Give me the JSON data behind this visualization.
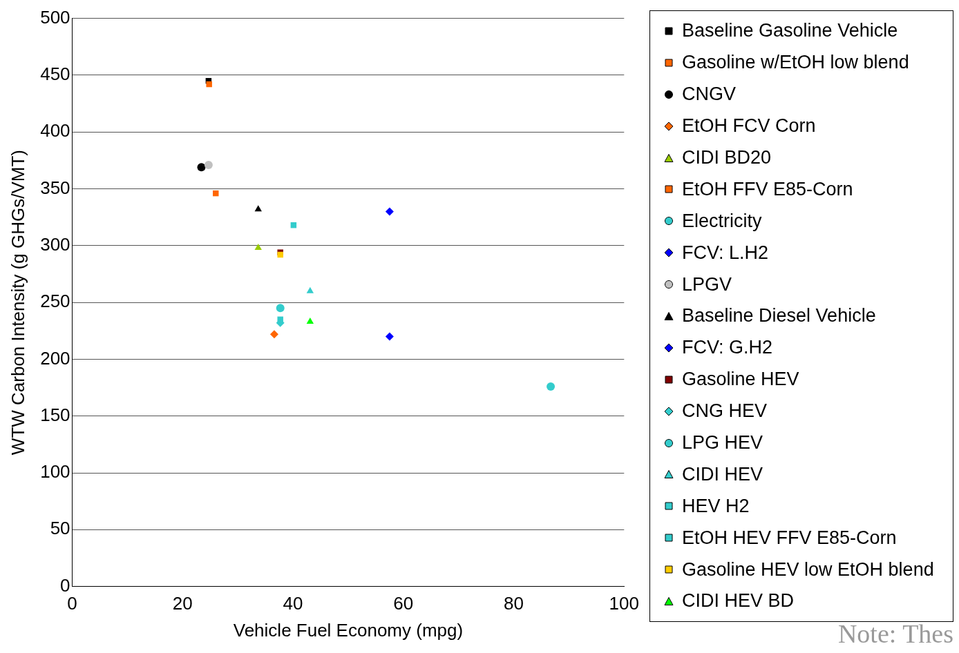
{
  "chart_data": {
    "type": "scatter",
    "xlabel": "Vehicle Fuel Economy (mpg)",
    "ylabel": "WTW Carbon Intensity (g GHGs/VMT)",
    "xlim": [
      0,
      100
    ],
    "xticks": [
      0,
      20,
      40,
      60,
      80,
      100
    ],
    "ylim": [
      0,
      500
    ],
    "yticks": [
      0,
      50,
      100,
      150,
      200,
      250,
      300,
      350,
      400,
      450,
      500
    ],
    "grid": "y",
    "legend": "right",
    "annotations": [
      "Note: Thes"
    ],
    "series": [
      {
        "name": "Baseline Gasoline Vehicle",
        "color": "#000000",
        "marker": "square",
        "x": [
          24.7
        ],
        "values": [
          445
        ]
      },
      {
        "name": "Gasoline w/EtOH low blend",
        "color": "#ff6600",
        "marker": "square",
        "x": [
          24.8
        ],
        "values": [
          442
        ]
      },
      {
        "name": "CNGV",
        "color": "#000000",
        "marker": "circle",
        "x": [
          23.4
        ],
        "values": [
          369
        ]
      },
      {
        "name": "EtOH FCV Corn",
        "color": "#ff6600",
        "marker": "diamond",
        "x": [
          36.6
        ],
        "values": [
          222
        ]
      },
      {
        "name": "CIDI BD20",
        "color": "#99cc00",
        "marker": "triangle",
        "x": [
          33.7
        ],
        "values": [
          298
        ]
      },
      {
        "name": "EtOH FFV E85-Corn",
        "color": "#ff6600",
        "marker": "square",
        "x": [
          26.0
        ],
        "values": [
          346
        ]
      },
      {
        "name": "Electricity",
        "color": "#33cccc",
        "marker": "circle",
        "x": [
          86.7
        ],
        "values": [
          176
        ]
      },
      {
        "name": "FCV: L.H2",
        "color": "#0000ff",
        "marker": "diamond",
        "x": [
          57.5
        ],
        "values": [
          330
        ]
      },
      {
        "name": "LPGV",
        "color": "#c0c0c0",
        "marker": "circle",
        "x": [
          24.7
        ],
        "values": [
          371
        ]
      },
      {
        "name": "Baseline Diesel Vehicle",
        "color": "#000000",
        "marker": "triangle",
        "x": [
          33.7
        ],
        "values": [
          332
        ]
      },
      {
        "name": "FCV: G.H2",
        "color": "#0000ff",
        "marker": "diamond",
        "x": [
          57.5
        ],
        "values": [
          220
        ]
      },
      {
        "name": "Gasoline HEV",
        "color": "#800000",
        "marker": "square",
        "x": [
          37.7
        ],
        "values": [
          294
        ]
      },
      {
        "name": "CNG HEV",
        "color": "#33cccc",
        "marker": "diamond",
        "x": [
          37.7
        ],
        "values": [
          232
        ]
      },
      {
        "name": "LPG HEV",
        "color": "#33cccc",
        "marker": "circle",
        "x": [
          37.7
        ],
        "values": [
          245
        ]
      },
      {
        "name": "CIDI HEV",
        "color": "#33cccc",
        "marker": "triangle",
        "x": [
          43.1
        ],
        "values": [
          260
        ]
      },
      {
        "name": "HEV H2",
        "color": "#33cccc",
        "marker": "square",
        "x": [
          40.1
        ],
        "values": [
          318
        ]
      },
      {
        "name": "EtOH HEV FFV E85-Corn",
        "color": "#33cccc",
        "marker": "square",
        "x": [
          37.7
        ],
        "values": [
          235
        ]
      },
      {
        "name": "Gasoline HEV low EtOH blend",
        "color": "#ffcc00",
        "marker": "square",
        "x": [
          37.7
        ],
        "values": [
          292
        ]
      },
      {
        "name": "CIDI HEV BD",
        "color": "#00ff00",
        "marker": "triangle",
        "x": [
          43.1
        ],
        "values": [
          233
        ]
      }
    ]
  }
}
